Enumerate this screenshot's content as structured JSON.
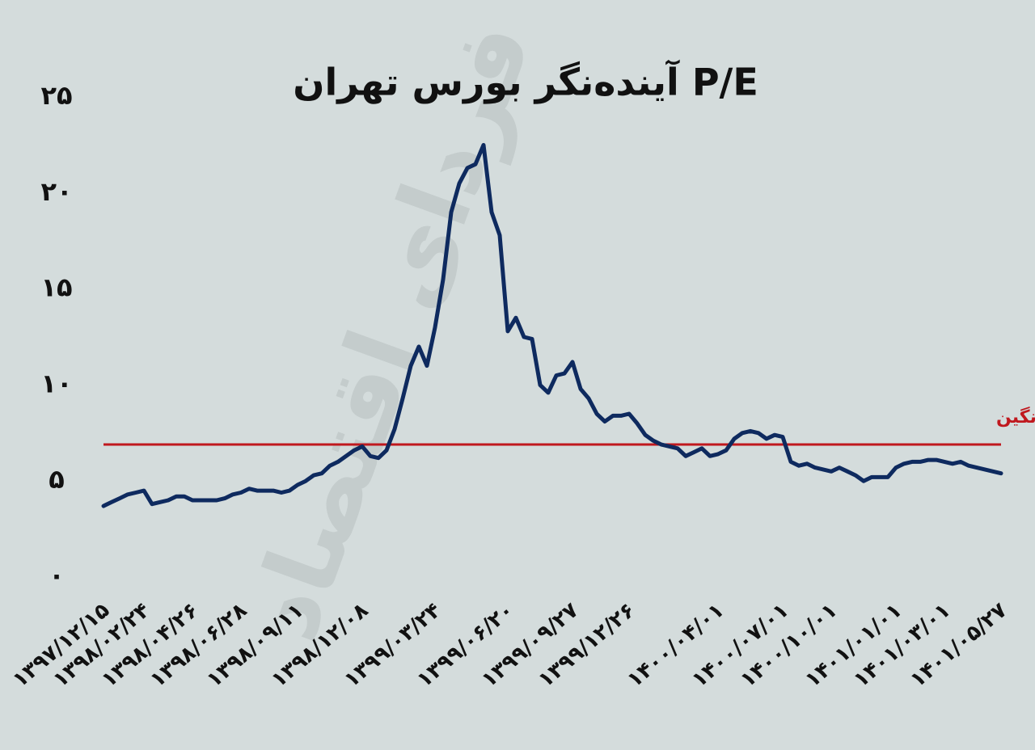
{
  "chart_data": {
    "type": "line",
    "title": "P/E آینده‌نگر بورس تهران",
    "watermark": "فردای اقتصاد",
    "categories": [
      "۱۳۹۷/۱۲/۱۵",
      null,
      null,
      null,
      null,
      "۱۳۹۸/۰۲/۲۴",
      null,
      null,
      null,
      null,
      null,
      "۱۳۹۸/۰۴/۲۶",
      null,
      null,
      null,
      null,
      null,
      "۱۳۹۸/۰۶/۲۸",
      null,
      null,
      null,
      null,
      null,
      null,
      "۱۳۹۸/۰۹/۱۱",
      null,
      null,
      null,
      null,
      null,
      null,
      null,
      "۱۳۹۸/۱۲/۰۸",
      null,
      null,
      null,
      null,
      null,
      null,
      null,
      null,
      "۱۳۹۹/۰۳/۲۴",
      null,
      null,
      null,
      null,
      null,
      null,
      null,
      null,
      "۱۳۹۹/۰۶/۲۰",
      null,
      null,
      null,
      null,
      null,
      null,
      null,
      "۱۳۹۹/۰۹/۲۷",
      null,
      null,
      null,
      null,
      null,
      null,
      "۱۳۹۹/۱۲/۲۶",
      null,
      null,
      null,
      null,
      null,
      null,
      null,
      null,
      null,
      null,
      "۱۴۰۰/۰۴/۰۱",
      null,
      null,
      null,
      null,
      null,
      null,
      null,
      "۱۴۰۰/۰۷/۰۱",
      null,
      null,
      null,
      null,
      null,
      "۱۴۰۰/۱۰/۰۱",
      null,
      null,
      null,
      null,
      null,
      null,
      null,
      "۱۴۰۱/۰۱/۰۱",
      null,
      null,
      null,
      null,
      null,
      "۱۴۰۱/۰۳/۰۱",
      null,
      null,
      null,
      null,
      null,
      null,
      "۱۴۰۱/۰۵/۲۷"
    ],
    "series": [
      {
        "color": "#0e2a5f",
        "values": [
          3.7,
          3.9,
          4.1,
          4.3,
          4.4,
          4.5,
          3.8,
          3.9,
          4.0,
          4.2,
          4.2,
          4.0,
          4.0,
          4.0,
          4.0,
          4.1,
          4.3,
          4.4,
          4.6,
          4.5,
          4.5,
          4.5,
          4.4,
          4.5,
          4.8,
          5.0,
          5.3,
          5.4,
          5.8,
          6.0,
          6.3,
          6.6,
          6.8,
          6.3,
          6.2,
          6.6,
          7.7,
          9.3,
          11.0,
          12.0,
          11.0,
          13.0,
          15.5,
          19.0,
          20.5,
          21.3,
          21.5,
          22.5,
          19.0,
          17.8,
          12.8,
          13.5,
          12.5,
          12.4,
          10.0,
          9.6,
          10.5,
          10.6,
          11.2,
          9.8,
          9.3,
          8.5,
          8.1,
          8.4,
          8.4,
          8.5,
          8.0,
          7.4,
          7.1,
          6.9,
          6.8,
          6.7,
          6.3,
          6.5,
          6.7,
          6.3,
          6.4,
          6.6,
          7.2,
          7.5,
          7.6,
          7.5,
          7.2,
          7.4,
          7.3,
          6.0,
          5.8,
          5.9,
          5.7,
          5.6,
          5.5,
          5.7,
          5.5,
          5.3,
          5.0,
          5.2,
          5.2,
          5.2,
          5.7,
          5.9,
          6.0,
          6.0,
          6.1,
          6.1,
          6.0,
          5.9,
          6.0,
          5.8,
          5.7,
          5.6,
          5.5,
          5.4
        ]
      }
    ],
    "average": {
      "label": "میانگین",
      "value": 6.9,
      "color": "#c0181e"
    },
    "ylim": [
      0,
      25
    ],
    "yticks": [
      {
        "value": 0,
        "label": "۰"
      },
      {
        "value": 5,
        "label": "۵"
      },
      {
        "value": 10,
        "label": "۱۰"
      },
      {
        "value": 15,
        "label": "۱۵"
      },
      {
        "value": 20,
        "label": "۲۰"
      },
      {
        "value": 25,
        "label": "۲۵"
      }
    ],
    "grid": false
  }
}
